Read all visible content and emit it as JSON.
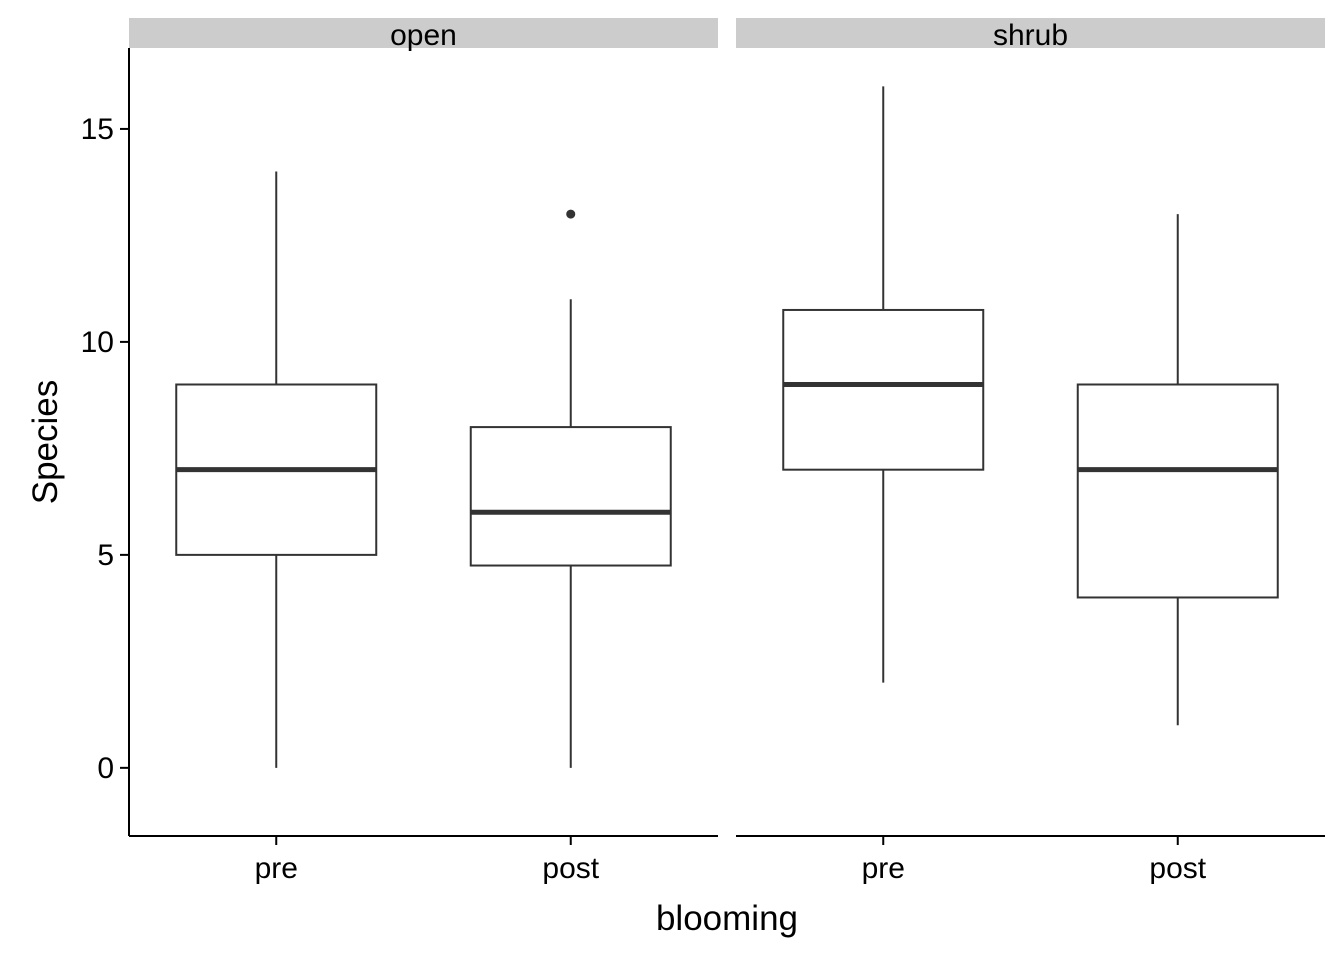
{
  "chart_data": {
    "type": "boxplot",
    "xlabel": "blooming",
    "ylabel": "Species",
    "ylim": [
      -1.6,
      16.9
    ],
    "y_ticks": [
      0,
      5,
      10,
      15
    ],
    "categories": [
      "pre",
      "post"
    ],
    "legend": "none",
    "grid": false,
    "colors": {
      "strip_fill": "#cccccc",
      "box_line": "#333333",
      "axis_line": "#000000"
    },
    "panels": [
      {
        "label": "open",
        "boxes": [
          {
            "category": "pre",
            "min": 0,
            "q1": 5,
            "median": 7,
            "q3": 9,
            "max": 14,
            "outliers": []
          },
          {
            "category": "post",
            "min": 0,
            "q1": 4.75,
            "median": 6,
            "q3": 8,
            "max": 11,
            "outliers": [
              13
            ]
          }
        ]
      },
      {
        "label": "shrub",
        "boxes": [
          {
            "category": "pre",
            "min": 2,
            "q1": 7,
            "median": 9,
            "q3": 10.75,
            "max": 16,
            "outliers": []
          },
          {
            "category": "post",
            "min": 1,
            "q1": 4,
            "median": 7,
            "q3": 9,
            "max": 13,
            "outliers": []
          }
        ]
      }
    ]
  }
}
